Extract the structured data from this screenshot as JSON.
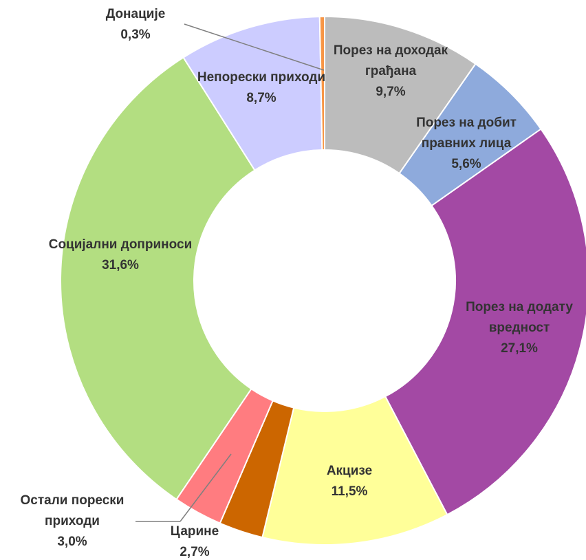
{
  "chart_data": {
    "type": "donut",
    "categories": [
      "Порез на доходак грађана",
      "Порез на добит правних лица",
      "Порез на додату вредност",
      "Акцизе",
      "Царине",
      "Остали порески приходи",
      "Социјални доприноси",
      "Непорески приходи",
      "Донације"
    ],
    "values": [
      9.7,
      5.6,
      27.1,
      11.5,
      2.7,
      3.0,
      31.6,
      8.7,
      0.3
    ],
    "value_labels": [
      "9,7%",
      "5,6%",
      "27,1%",
      "11,5%",
      "2,7%",
      "3,0%",
      "31,6%",
      "8,7%",
      "0,3%"
    ],
    "colors": [
      "#bcbcbc",
      "#8eaadc",
      "#a349a4",
      "#ffff99",
      "#cc6600",
      "#ff7c80",
      "#b3de81",
      "#ccccff",
      "#f79646"
    ]
  }
}
